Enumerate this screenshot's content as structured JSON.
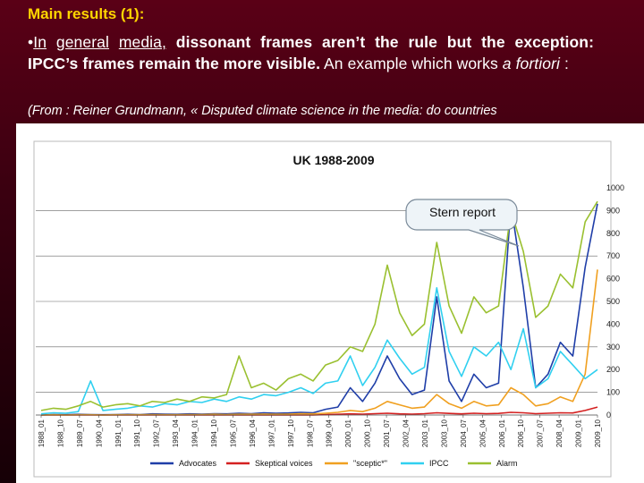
{
  "slide": {
    "title": "Main results (1):",
    "body": {
      "bullet": "•",
      "w1": "In",
      "w2": "general",
      "w3": "media,",
      "rest1": "dissonant frames aren’t the rule but the exception: IPCC’s frames remain the more visible.",
      "rest2": "An example which works",
      "fortiori": "a fortiori",
      "colon": ":"
    },
    "source": "(From : Reiner Grundmann, « Disputed climate science in the media: do countries"
  },
  "chart_data": {
    "type": "line",
    "title": "UK 1988-2009",
    "annotation": "Stern report",
    "ylim": [
      0,
      1000
    ],
    "yticks": [
      0,
      100,
      200,
      300,
      400,
      500,
      600,
      700,
      800,
      900,
      1000
    ],
    "xticks": [
      "1988_01",
      "1988_10",
      "1989_07",
      "1990_04",
      "1991_01",
      "1991_10",
      "1992_07",
      "1993_04",
      "1994_01",
      "1994_10",
      "1995_07",
      "1996_04",
      "1997_01",
      "1997_10",
      "1998_07",
      "1999_04",
      "2000_01",
      "2000_10",
      "2001_07",
      "2002_04",
      "2003_01",
      "2003_10",
      "2004_07",
      "2005_04",
      "2006_01",
      "2006_10",
      "2007_07",
      "2008_04",
      "2009_01",
      "2009_10"
    ],
    "legend_position": "bottom",
    "series": [
      {
        "name": "Advocates",
        "color": "#1f3ea8",
        "values": [
          0,
          2,
          1,
          3,
          2,
          1,
          2,
          3,
          2,
          5,
          4,
          3,
          5,
          4,
          6,
          5,
          8,
          6,
          10,
          8,
          9,
          12,
          10,
          25,
          35,
          120,
          60,
          140,
          260,
          160,
          90,
          110,
          520,
          150,
          60,
          180,
          120,
          140,
          930,
          560,
          120,
          180,
          320,
          260,
          650,
          930
        ]
      },
      {
        "name": "Skeptical voices",
        "color": "#d42020",
        "values": [
          0,
          0,
          0,
          0,
          0,
          0,
          0,
          0,
          0,
          0,
          0,
          0,
          0,
          0,
          0,
          0,
          0,
          0,
          0,
          0,
          0,
          0,
          0,
          2,
          3,
          5,
          4,
          6,
          8,
          5,
          4,
          6,
          10,
          7,
          5,
          8,
          6,
          7,
          12,
          10,
          6,
          8,
          10,
          9,
          20,
          35
        ]
      },
      {
        "name": "\"sceptic*\"",
        "color": "#f0a020",
        "values": [
          0,
          1,
          0,
          1,
          1,
          0,
          1,
          1,
          1,
          2,
          1,
          1,
          2,
          2,
          3,
          2,
          3,
          3,
          4,
          3,
          4,
          6,
          5,
          8,
          12,
          20,
          15,
          30,
          60,
          45,
          30,
          35,
          90,
          50,
          30,
          60,
          40,
          45,
          120,
          90,
          40,
          50,
          80,
          60,
          180,
          640
        ]
      },
      {
        "name": "IPCC",
        "color": "#30d0f0",
        "values": [
          5,
          10,
          8,
          15,
          150,
          20,
          25,
          30,
          40,
          35,
          50,
          45,
          60,
          55,
          70,
          60,
          80,
          70,
          90,
          85,
          100,
          120,
          95,
          140,
          150,
          260,
          130,
          210,
          330,
          250,
          180,
          210,
          560,
          280,
          170,
          300,
          260,
          320,
          200,
          380,
          120,
          160,
          280,
          220,
          160,
          200
        ]
      },
      {
        "name": "Alarm",
        "color": "#9ac030",
        "values": [
          20,
          30,
          25,
          40,
          60,
          35,
          45,
          50,
          40,
          60,
          55,
          70,
          60,
          80,
          75,
          90,
          260,
          120,
          140,
          110,
          160,
          180,
          150,
          220,
          240,
          300,
          280,
          400,
          660,
          450,
          350,
          400,
          760,
          480,
          360,
          520,
          450,
          480,
          900,
          720,
          430,
          480,
          620,
          560,
          850,
          940
        ]
      }
    ]
  }
}
